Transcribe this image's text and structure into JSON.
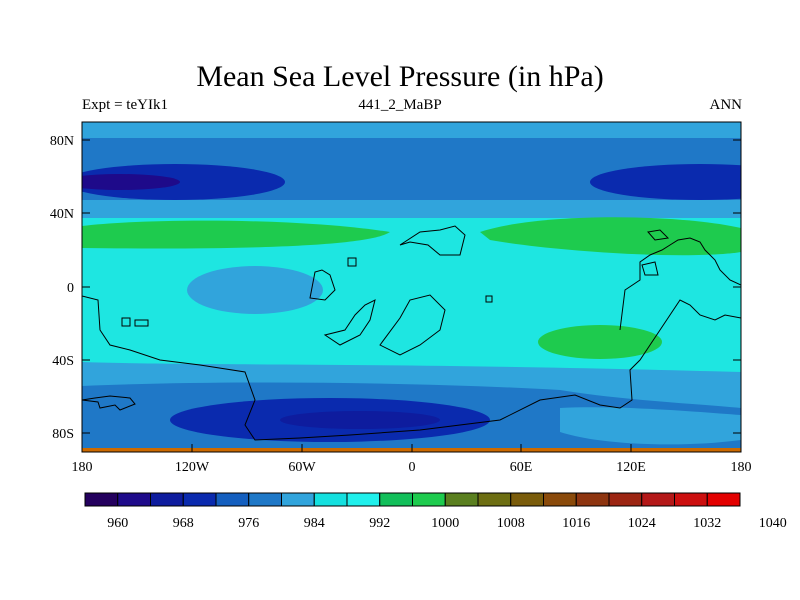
{
  "title": "Mean Sea Level Pressure (in hPa)",
  "left_string": "Expt = teYIk1",
  "center_string": "441_2_MaBP",
  "right_string": "ANN",
  "lat_labels": [
    "80N",
    "40N",
    "0",
    "40S",
    "80S"
  ],
  "lon_labels": [
    "180",
    "120W",
    "60W",
    "0",
    "60E",
    "120E",
    "180"
  ],
  "colorbar": {
    "colors": [
      "#24005e",
      "#1e0a8a",
      "#0e1c9e",
      "#0a2aae",
      "#145fbf",
      "#1f78c7",
      "#31a4dc",
      "#14e0df",
      "#20f0ec",
      "#12bf5a",
      "#1ecb4e",
      "#5a7f1f",
      "#6d6e12",
      "#7a5c0b",
      "#8a4a0a",
      "#8e3510",
      "#9c2512",
      "#b41818",
      "#cc0f0f",
      "#e30000"
    ],
    "labels": [
      "960",
      "968",
      "976",
      "984",
      "992",
      "1000",
      "1008",
      "1016",
      "1024",
      "1032",
      "1040"
    ]
  },
  "chart_data": {
    "type": "heatmap",
    "title": "Mean Sea Level Pressure (in hPa)",
    "units": "hPa",
    "x_range": [
      -180,
      180
    ],
    "y_range": [
      -90,
      90
    ],
    "levels": [
      960,
      964,
      968,
      972,
      976,
      980,
      984,
      988,
      992,
      996,
      1000,
      1004,
      1008,
      1012,
      1016,
      1020,
      1024,
      1028,
      1032,
      1036,
      1040
    ],
    "regions": [
      {
        "name": "background",
        "value": 994
      },
      {
        "name": "nh-midlat-low-band",
        "value": 982
      },
      {
        "name": "nh-deep-low-west",
        "value": 965
      },
      {
        "name": "nh-deep-low-east",
        "value": 965
      },
      {
        "name": "nh-subtropical-high-west",
        "value": 1003
      },
      {
        "name": "nh-subtropical-high-east",
        "value": 1003
      },
      {
        "name": "equatorial-low-atlantic",
        "value": 989
      },
      {
        "name": "sh-subtropical-high-indian",
        "value": 1002
      },
      {
        "name": "southern-ocean-low-band",
        "value": 982
      },
      {
        "name": "southern-ocean-deep-low",
        "value": 966
      }
    ]
  }
}
